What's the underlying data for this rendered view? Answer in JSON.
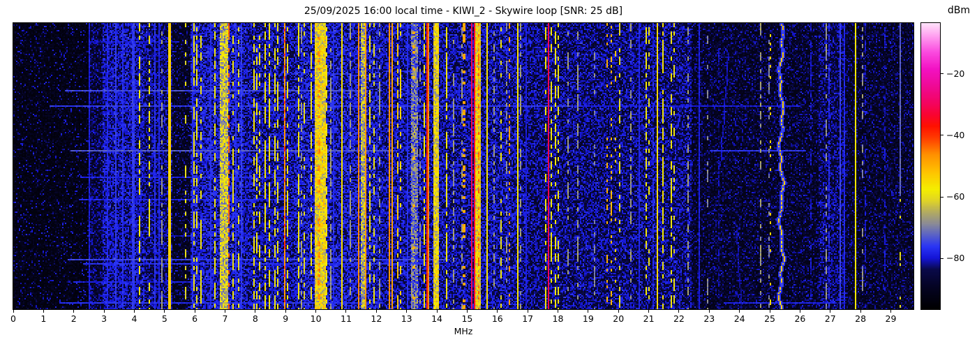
{
  "chart_data": {
    "type": "heatmap",
    "title": "25/09/2025 16:00 local time - KIWI_2 - Skywire loop [SNR: 25 dB]",
    "seed": 20250925,
    "x_axis": {
      "label": "MHz",
      "min": 0,
      "max": 29.75,
      "ticks": [
        0,
        1,
        2,
        3,
        4,
        5,
        6,
        7,
        8,
        9,
        10,
        11,
        12,
        13,
        14,
        15,
        16,
        17,
        18,
        19,
        20,
        21,
        22,
        23,
        24,
        25,
        26,
        27,
        28,
        29
      ]
    },
    "y_axis": {
      "note": "time (unlabeled waterfall rows)"
    },
    "colorbar": {
      "label": "dBm",
      "value_top": -3.5,
      "value_bottom": -96.5,
      "ticks": [
        {
          "label": "−20",
          "value": -20
        },
        {
          "label": "−40",
          "value": -40
        },
        {
          "label": "−60",
          "value": -60
        },
        {
          "label": "−80",
          "value": -80
        }
      ],
      "colormap_stops": [
        [
          0.0,
          "#000000"
        ],
        [
          0.08,
          "#050424"
        ],
        [
          0.14,
          "#0a0a4a"
        ],
        [
          0.18,
          "#1515d8"
        ],
        [
          0.22,
          "#2a35f5"
        ],
        [
          0.26,
          "#5a62c8"
        ],
        [
          0.3,
          "#8c8c96"
        ],
        [
          0.34,
          "#b3ab62"
        ],
        [
          0.38,
          "#e0d428"
        ],
        [
          0.42,
          "#f5ef00"
        ],
        [
          0.48,
          "#ffc400"
        ],
        [
          0.54,
          "#ff9300"
        ],
        [
          0.6,
          "#ff3c00"
        ],
        [
          0.64,
          "#ff1200"
        ],
        [
          0.68,
          "#fa0531"
        ],
        [
          0.72,
          "#f4045f"
        ],
        [
          0.78,
          "#ef0a95"
        ],
        [
          0.84,
          "#f312c4"
        ],
        [
          0.9,
          "#fb4ce0"
        ],
        [
          0.95,
          "#ff97ef"
        ],
        [
          1.0,
          "#ffe3fb"
        ]
      ]
    },
    "noise_regions": [
      {
        "f0": 0.0,
        "f1": 2.55,
        "floor": -94,
        "span": 6,
        "sp": 0.06,
        "spl": -85
      },
      {
        "f0": 2.55,
        "f1": 2.95,
        "floor": -91,
        "span": 7,
        "sp": 0.3,
        "spl": -84
      },
      {
        "f0": 2.95,
        "f1": 4.35,
        "floor": -88,
        "span": 8,
        "sp": 0.5,
        "spl": -81
      },
      {
        "f0": 4.35,
        "f1": 5.25,
        "floor": -89,
        "span": 8,
        "sp": 0.35,
        "spl": -82
      },
      {
        "f0": 5.25,
        "f1": 5.85,
        "floor": -92,
        "span": 6,
        "sp": 0.15,
        "spl": -85
      },
      {
        "f0": 5.85,
        "f1": 7.6,
        "floor": -87,
        "span": 8,
        "sp": 0.5,
        "spl": -80
      },
      {
        "f0": 7.6,
        "f1": 9.3,
        "floor": -88,
        "span": 8,
        "sp": 0.45,
        "spl": -81
      },
      {
        "f0": 9.3,
        "f1": 12.1,
        "floor": -87,
        "span": 8,
        "sp": 0.5,
        "spl": -80
      },
      {
        "f0": 12.1,
        "f1": 16.8,
        "floor": -88,
        "span": 8,
        "sp": 0.45,
        "spl": -81
      },
      {
        "f0": 16.8,
        "f1": 22.4,
        "floor": -89,
        "span": 7,
        "sp": 0.4,
        "spl": -82
      },
      {
        "f0": 22.4,
        "f1": 26.6,
        "floor": -92,
        "span": 6,
        "sp": 0.25,
        "spl": -85
      },
      {
        "f0": 26.6,
        "f1": 27.5,
        "floor": -90,
        "span": 7,
        "sp": 0.4,
        "spl": -83
      },
      {
        "f0": 27.5,
        "f1": 29.75,
        "floor": -92,
        "span": 6,
        "sp": 0.25,
        "spl": -85
      }
    ],
    "signal_bands": [
      {
        "f": 2.5,
        "w": 0.05,
        "l": -79,
        "s": "sol"
      },
      {
        "f": 3.1,
        "w": 0.04,
        "l": -78,
        "s": "sol"
      },
      {
        "f": 3.38,
        "w": 0.05,
        "l": -76,
        "s": "sol"
      },
      {
        "f": 3.62,
        "w": 0.04,
        "l": -77,
        "s": "sol"
      },
      {
        "f": 3.97,
        "w": 0.07,
        "l": -76,
        "s": "sol"
      },
      {
        "f": 4.66,
        "w": 0.04,
        "l": -77,
        "s": "sol"
      },
      {
        "f": 4.8,
        "w": 0.04,
        "l": -78,
        "s": "sol"
      },
      {
        "f": 5.9,
        "w": 0.03,
        "l": -78,
        "s": "sol"
      },
      {
        "f": 6.5,
        "w": 0.03,
        "l": -77,
        "s": "sol"
      },
      {
        "f": 7.33,
        "w": 0.03,
        "l": -77,
        "s": "sol"
      },
      {
        "f": 7.53,
        "w": 0.03,
        "l": -76,
        "s": "sol"
      },
      {
        "f": 10.6,
        "w": 0.03,
        "l": -78,
        "s": "sol"
      },
      {
        "f": 13.02,
        "w": 0.03,
        "l": -77,
        "s": "sol"
      },
      {
        "f": 16.95,
        "w": 0.03,
        "l": -79,
        "s": "sol"
      },
      {
        "f": 20.68,
        "w": 0.03,
        "l": -78,
        "s": "sol"
      },
      {
        "f": 21.15,
        "w": 0.03,
        "l": -78,
        "s": "dash",
        "d": 0.7
      },
      {
        "f": 22.64,
        "w": 0.03,
        "l": -79,
        "s": "sol"
      },
      {
        "f": 23.3,
        "w": 0.03,
        "l": -82,
        "s": "dash",
        "d": 0.5
      },
      {
        "f": 26.35,
        "w": 0.04,
        "l": -80,
        "s": "dash",
        "d": 0.5
      },
      {
        "f": 26.95,
        "w": 0.05,
        "l": -77,
        "s": "dash",
        "d": 0.6
      },
      {
        "f": 27.32,
        "w": 0.04,
        "l": -75,
        "s": "sol"
      },
      {
        "f": 27.45,
        "w": 0.03,
        "l": -78,
        "s": "sol"
      },
      {
        "f": 28.15,
        "w": 0.04,
        "l": -80,
        "s": "dash",
        "d": 0.5
      },
      {
        "f": 28.78,
        "w": 0.03,
        "l": -80,
        "s": "dash",
        "d": 0.5
      },
      {
        "f": 29.3,
        "w": 0.05,
        "l": -72,
        "s": "sol",
        "y1": 0.6
      },
      {
        "f": 29.32,
        "w": 0.04,
        "l": -60,
        "s": "dot",
        "d": 0.25,
        "y0": 0.55
      },
      {
        "f": 4.18,
        "w": 0.03,
        "l": -58,
        "s": "dash",
        "d": 0.55
      },
      {
        "f": 4.48,
        "w": 0.03,
        "l": -59,
        "s": "dash",
        "d": 0.5
      },
      {
        "f": 5.67,
        "w": 0.03,
        "l": -60,
        "s": "dash",
        "d": 0.4
      },
      {
        "f": 5.98,
        "w": 0.03,
        "l": -58,
        "s": "dash",
        "d": 0.6
      },
      {
        "f": 6.07,
        "w": 0.03,
        "l": -59,
        "s": "dash",
        "d": 0.5
      },
      {
        "f": 6.2,
        "w": 0.03,
        "l": -58,
        "s": "dash",
        "d": 0.55
      },
      {
        "f": 6.66,
        "w": 0.03,
        "l": -58,
        "s": "dash",
        "d": 0.6
      },
      {
        "f": 7.24,
        "w": 0.03,
        "l": -58,
        "s": "dash",
        "d": 0.55
      },
      {
        "f": 7.44,
        "w": 0.03,
        "l": -60,
        "s": "dash",
        "d": 0.4
      },
      {
        "f": 7.95,
        "w": 0.03,
        "l": -57,
        "s": "dash",
        "d": 0.65
      },
      {
        "f": 8.03,
        "w": 0.03,
        "l": -58,
        "s": "dash",
        "d": 0.55
      },
      {
        "f": 8.12,
        "w": 0.03,
        "l": -58,
        "s": "dash",
        "d": 0.5
      },
      {
        "f": 8.32,
        "w": 0.035,
        "l": -57,
        "s": "dash",
        "d": 0.75
      },
      {
        "f": 8.44,
        "w": 0.035,
        "l": -57,
        "s": "dash",
        "d": 0.7
      },
      {
        "f": 8.63,
        "w": 0.03,
        "l": -59,
        "s": "dash",
        "d": 0.5
      },
      {
        "f": 8.74,
        "w": 0.03,
        "l": -59,
        "s": "dash",
        "d": 0.5
      },
      {
        "f": 9.05,
        "w": 0.03,
        "l": -58,
        "s": "dash",
        "d": 0.5
      },
      {
        "f": 9.42,
        "w": 0.04,
        "l": -57,
        "s": "dash",
        "d": 0.7
      },
      {
        "f": 9.6,
        "w": 0.03,
        "l": -60,
        "s": "dash",
        "d": 0.4
      },
      {
        "f": 9.84,
        "w": 0.035,
        "l": -58,
        "s": "dash",
        "d": 0.6
      },
      {
        "f": 10.37,
        "w": 0.04,
        "l": -57,
        "s": "dash",
        "d": 0.7
      },
      {
        "f": 11.78,
        "w": 0.035,
        "l": -58,
        "s": "dash",
        "d": 0.6
      },
      {
        "f": 11.93,
        "w": 0.03,
        "l": -59,
        "s": "dash",
        "d": 0.5
      },
      {
        "f": 13.57,
        "w": 0.03,
        "l": -57,
        "s": "dash",
        "d": 0.6
      },
      {
        "f": 14.33,
        "w": 0.03,
        "l": -57,
        "s": "dash",
        "d": 0.7
      },
      {
        "f": 16.12,
        "w": 0.03,
        "l": -59,
        "s": "dash",
        "d": 0.4
      },
      {
        "f": 17.58,
        "w": 0.04,
        "l": -57,
        "s": "dash",
        "d": 0.5
      },
      {
        "f": 17.78,
        "w": 0.03,
        "l": -58,
        "s": "dash",
        "d": 0.4
      },
      {
        "f": 17.93,
        "w": 0.035,
        "l": -57,
        "s": "dash",
        "d": 0.6
      },
      {
        "f": 18.01,
        "w": 0.03,
        "l": -58,
        "s": "dash",
        "d": 0.5
      },
      {
        "f": 20.05,
        "w": 0.03,
        "l": -60,
        "s": "dash",
        "d": 0.4
      },
      {
        "f": 20.93,
        "w": 0.035,
        "l": -58,
        "s": "dash",
        "d": 0.5
      },
      {
        "f": 21.02,
        "w": 0.03,
        "l": -59,
        "s": "dash",
        "d": 0.4
      },
      {
        "f": 21.45,
        "w": 0.035,
        "l": -57,
        "s": "dash",
        "d": 0.6
      },
      {
        "f": 21.72,
        "w": 0.03,
        "l": -58,
        "s": "dash",
        "d": 0.5
      },
      {
        "f": 21.82,
        "w": 0.03,
        "l": -59,
        "s": "dash",
        "d": 0.4
      },
      {
        "f": 5.16,
        "w": 0.07,
        "l": -54,
        "s": "sol"
      },
      {
        "f": 10.88,
        "w": 0.05,
        "l": -56,
        "s": "sol"
      },
      {
        "f": 15.66,
        "w": 0.05,
        "l": -56,
        "s": "sol"
      },
      {
        "f": 16.65,
        "w": 0.04,
        "l": -56,
        "s": "sol"
      },
      {
        "f": 21.3,
        "w": 0.05,
        "l": -55,
        "s": "sol"
      },
      {
        "f": 27.85,
        "w": 0.04,
        "l": -57,
        "s": "sol"
      },
      {
        "f": 4.9,
        "w": 0.03,
        "l": -67,
        "s": "dash",
        "d": 0.5
      },
      {
        "f": 9.5,
        "w": 0.03,
        "l": -67,
        "s": "dash",
        "d": 0.5
      },
      {
        "f": 10.5,
        "w": 0.03,
        "l": -67,
        "s": "dash",
        "d": 0.5
      },
      {
        "f": 11.13,
        "w": 0.03,
        "l": -67,
        "s": "dash",
        "d": 0.5
      },
      {
        "f": 12.12,
        "w": 0.03,
        "l": -67,
        "s": "dash",
        "d": 0.5
      },
      {
        "f": 13.45,
        "w": 0.03,
        "l": -68,
        "s": "dash",
        "d": 0.4
      },
      {
        "f": 14.53,
        "w": 0.03,
        "l": -67,
        "s": "dash",
        "d": 0.5
      },
      {
        "f": 14.8,
        "w": 0.03,
        "l": -67,
        "s": "dash",
        "d": 0.5
      },
      {
        "f": 15.9,
        "w": 0.03,
        "l": -67,
        "s": "dash",
        "d": 0.5
      },
      {
        "f": 16.3,
        "w": 0.03,
        "l": -68,
        "s": "dash",
        "d": 0.4
      },
      {
        "f": 16.77,
        "w": 0.03,
        "l": -67,
        "s": "dash",
        "d": 0.5
      },
      {
        "f": 18.33,
        "w": 0.03,
        "l": -67,
        "s": "dash",
        "d": 0.5
      },
      {
        "f": 18.67,
        "w": 0.03,
        "l": -67,
        "s": "dash",
        "d": 0.5
      },
      {
        "f": 19.2,
        "w": 0.03,
        "l": -69,
        "s": "dash",
        "d": 0.3
      },
      {
        "f": 20.42,
        "w": 0.03,
        "l": -67,
        "s": "dash",
        "d": 0.5
      },
      {
        "f": 22.3,
        "w": 0.03,
        "l": -67,
        "s": "dash",
        "d": 0.5
      },
      {
        "f": 22.95,
        "w": 0.03,
        "l": -69,
        "s": "dash",
        "d": 0.3
      },
      {
        "f": 24.7,
        "w": 0.03,
        "l": -67,
        "s": "dash",
        "d": 0.5
      },
      {
        "f": 24.95,
        "w": 0.03,
        "l": -69,
        "s": "dash",
        "d": 0.4
      },
      {
        "f": 26.85,
        "w": 0.03,
        "l": -68,
        "s": "dash",
        "d": 0.5
      },
      {
        "f": 28.08,
        "w": 0.03,
        "l": -68,
        "s": "dash",
        "d": 0.4
      },
      {
        "f": 8.98,
        "w": 0.05,
        "l": -47,
        "s": "sol"
      },
      {
        "f": 11.43,
        "w": 0.05,
        "l": -46,
        "s": "sol"
      },
      {
        "f": 11.66,
        "w": 0.05,
        "l": -47,
        "s": "sol"
      },
      {
        "f": 12.45,
        "w": 0.04,
        "l": -46,
        "s": "sol"
      },
      {
        "f": 12.53,
        "w": 0.04,
        "l": -48,
        "s": "sol"
      },
      {
        "f": 12.7,
        "w": 0.035,
        "l": -53,
        "s": "dash",
        "d": 0.6
      },
      {
        "f": 12.78,
        "w": 0.03,
        "l": -54,
        "s": "dash",
        "d": 0.5
      },
      {
        "f": 13.74,
        "w": 0.04,
        "l": -46,
        "s": "sol"
      },
      {
        "f": 8.98,
        "w": 0.04,
        "l": -40,
        "s": "dot",
        "d": 0.3
      },
      {
        "f": 10.1,
        "w": 0.06,
        "l": -47,
        "s": "dot",
        "d": 0.35
      },
      {
        "f": 13.25,
        "w": 0.1,
        "l": -50,
        "s": "dot",
        "d": 0.12
      },
      {
        "f": 14.9,
        "w": 0.08,
        "l": -49,
        "s": "dot",
        "d": 0.3
      },
      {
        "f": 15.4,
        "w": 0.04,
        "l": -44,
        "s": "dot",
        "d": 0.4
      },
      {
        "f": 16.4,
        "w": 0.05,
        "l": -48,
        "s": "dot",
        "d": 0.3
      },
      {
        "f": 19.63,
        "w": 0.04,
        "l": -50,
        "s": "dot",
        "d": 0.25
      },
      {
        "f": 19.76,
        "w": 0.04,
        "l": -51,
        "s": "dot",
        "d": 0.2
      },
      {
        "f": 19.88,
        "w": 0.04,
        "l": -52,
        "s": "dot",
        "d": 0.2
      },
      {
        "f": 25.0,
        "w": 0.03,
        "l": -55,
        "s": "dot",
        "d": 0.15
      },
      {
        "f": 13.68,
        "w": 0.06,
        "l": -38,
        "s": "sol"
      },
      {
        "f": 7.1,
        "w": 0.035,
        "l": -43,
        "s": "dash",
        "d": 0.55
      },
      {
        "f": 15.15,
        "w": 0.05,
        "l": -30,
        "s": "sol"
      },
      {
        "f": 15.22,
        "w": 0.04,
        "l": -33,
        "s": "sol"
      },
      {
        "f": 17.68,
        "w": 0.06,
        "l": -31,
        "s": "sol"
      },
      {
        "f": 6.96,
        "w": 0.26,
        "l": -60,
        "s": "band"
      },
      {
        "f": 10.13,
        "w": 0.36,
        "l": -55,
        "s": "band"
      },
      {
        "f": 11.55,
        "w": 0.16,
        "l": -62,
        "s": "band"
      },
      {
        "f": 13.26,
        "w": 0.19,
        "l": -68,
        "s": "band"
      },
      {
        "f": 13.98,
        "w": 0.17,
        "l": -56,
        "s": "band"
      },
      {
        "f": 15.34,
        "w": 0.18,
        "l": -54,
        "s": "band"
      }
    ],
    "horizontal_streaks": [
      {
        "y": 0.064,
        "f0": 2.5,
        "f1": 5.5,
        "l": -80
      },
      {
        "y": 0.237,
        "f0": 1.7,
        "f1": 11.7,
        "l": -74
      },
      {
        "y": 0.289,
        "f0": 1.2,
        "f1": 18.5,
        "l": -76
      },
      {
        "y": 0.289,
        "f0": 18.5,
        "f1": 26.0,
        "l": -79
      },
      {
        "y": 0.445,
        "f0": 1.9,
        "f1": 12.6,
        "l": -73
      },
      {
        "y": 0.445,
        "f0": 23.0,
        "f1": 26.2,
        "l": -76
      },
      {
        "y": 0.538,
        "f0": 2.2,
        "f1": 9.2,
        "l": -78
      },
      {
        "y": 0.618,
        "f0": 2.2,
        "f1": 10.5,
        "l": -78
      },
      {
        "y": 0.743,
        "f0": 4.8,
        "f1": 9.2,
        "l": -80
      },
      {
        "y": 0.826,
        "f0": 1.8,
        "f1": 14.3,
        "l": -75
      },
      {
        "y": 0.843,
        "f0": 2.3,
        "f1": 13.6,
        "l": -77
      },
      {
        "y": 0.909,
        "f0": 2.0,
        "f1": 7.2,
        "l": -79
      },
      {
        "y": 0.978,
        "f0": 1.5,
        "f1": 12.2,
        "l": -77
      },
      {
        "y": 0.978,
        "f0": 23.5,
        "f1": 27.2,
        "l": -78
      }
    ],
    "special_features": {
      "wiggly_carrier": {
        "f_center": 25.36,
        "amp1": 0.05,
        "amp2": 0.035,
        "duty": 0.62,
        "l": -57
      },
      "diagonal_traces": [
        {
          "r0": 0.1,
          "r1": 0.5,
          "f0": 23.62,
          "f1": 23.34,
          "l": -82
        },
        {
          "r0": 0.72,
          "r1": 1.0,
          "f0": 23.88,
          "f1": 24.05,
          "l": -83
        }
      ]
    }
  }
}
